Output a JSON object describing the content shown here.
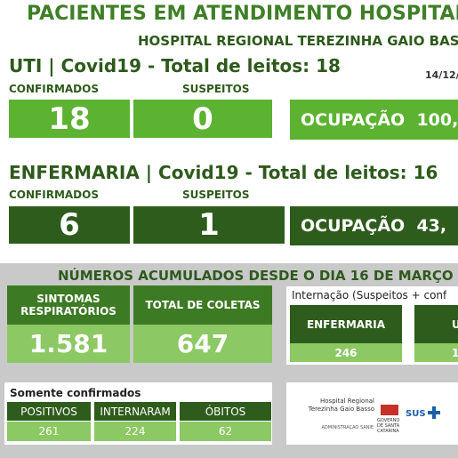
{
  "header": {
    "title": "PACIENTES EM ATENDIMENTO HOSPITAL",
    "subtitle": "HOSPITAL REGIONAL TEREZINHA GAIO BAS"
  },
  "uti": {
    "heading": "UTI | Covid19 - Total de leitos: 18",
    "date": "14/12/",
    "confirmed_label": "CONFIRMADOS",
    "suspected_label": "SUSPEITOS",
    "confirmed": "18",
    "suspected": "0",
    "occupancy_label": "OCUPAÇÃO",
    "occupancy": "100,"
  },
  "ward": {
    "heading": "ENFERMARIA | Covid19 - Total de leitos: 16",
    "confirmed_label": "CONFIRMADOS",
    "suspected_label": "SUSPEITOS",
    "confirmed": "6",
    "suspected": "1",
    "occupancy_label": "OCUPAÇÃO",
    "occupancy": "43,"
  },
  "cumulative": {
    "heading": "NÚMEROS ACUMULADOS DESDE O DIA 16 DE MARÇO",
    "symptoms_label": "SINTOMAS RESPIRATÓRIOS",
    "symptoms": "1.581",
    "samples_label": "TOTAL DE COLETAS",
    "samples": "647",
    "admission_heading": "Internação (Suspeitos + conf",
    "admission_ward_label": "ENFERMARIA",
    "admission_ward": "246",
    "admission_icu_label": "U",
    "admission_icu": "1"
  },
  "confirmed_only": {
    "heading": "Somente confirmados",
    "positive_label": "POSITIVOS",
    "positive": "261",
    "admitted_label": "INTERNARAM",
    "admitted": "224",
    "deaths_label": "ÓBITOS",
    "deaths": "62"
  },
  "logos": {
    "hospital": "Hospital Regional Terezinha Gaio Basso",
    "admin": "ADMINISTRAÇÃO SANIE",
    "government": "GOVERNO DE SANTA CATARINA",
    "sus": "SUS"
  }
}
